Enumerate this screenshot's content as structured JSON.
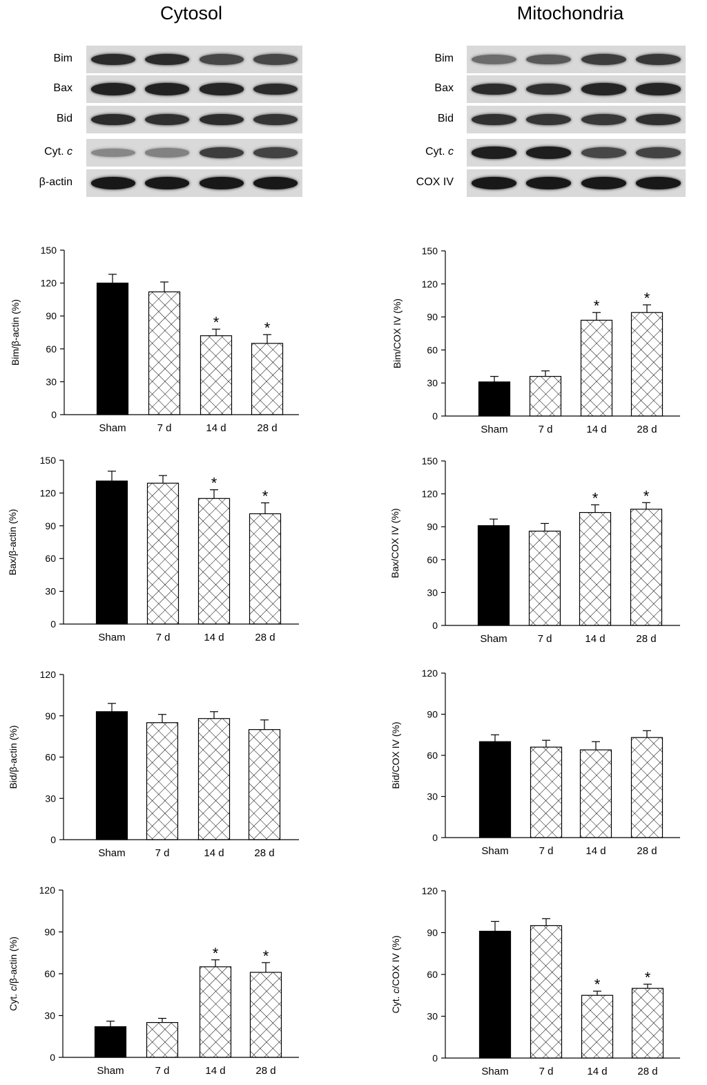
{
  "titles": {
    "cytosol": "Cytosol",
    "mitochondria": "Mitochondria"
  },
  "blots": {
    "cytosol": {
      "rows": [
        {
          "name": "Bim",
          "label_main": "Bim",
          "label_ital": "",
          "intensity": [
            0.85,
            0.85,
            0.7,
            0.7
          ]
        },
        {
          "name": "Bax",
          "label_main": "Bax",
          "label_ital": "",
          "intensity": [
            0.9,
            0.9,
            0.88,
            0.85
          ]
        },
        {
          "name": "Bid",
          "label_main": "Bid",
          "label_ital": "",
          "intensity": [
            0.85,
            0.82,
            0.84,
            0.8
          ]
        },
        {
          "name": "Cyt. c",
          "label_main": "Cyt. ",
          "label_ital": "c",
          "intensity": [
            0.35,
            0.38,
            0.75,
            0.72
          ]
        },
        {
          "name": "β-actin",
          "label_main": "β-actin",
          "label_ital": "",
          "intensity": [
            0.95,
            0.95,
            0.95,
            0.95
          ]
        }
      ]
    },
    "mitochondria": {
      "rows": [
        {
          "name": "Bim",
          "label_main": "Bim",
          "label_ital": "",
          "intensity": [
            0.5,
            0.6,
            0.75,
            0.78
          ]
        },
        {
          "name": "Bax",
          "label_main": "Bax",
          "label_ital": "",
          "intensity": [
            0.85,
            0.82,
            0.88,
            0.88
          ]
        },
        {
          "name": "Bid",
          "label_main": "Bid",
          "label_ital": "",
          "intensity": [
            0.82,
            0.8,
            0.78,
            0.82
          ]
        },
        {
          "name": "Cyt. c",
          "label_main": "Cyt. ",
          "label_ital": "c",
          "intensity": [
            0.92,
            0.92,
            0.7,
            0.72
          ]
        },
        {
          "name": "COX IV",
          "label_main": "COX IV",
          "label_ital": "",
          "intensity": [
            0.95,
            0.95,
            0.95,
            0.95
          ]
        }
      ]
    }
  },
  "chart_data": [
    {
      "id": "cyto-bim",
      "type": "bar",
      "ylabel": "Bim/β-actin (%)",
      "ylabel_ital": false,
      "categories": [
        "Sham",
        "7 d",
        "14 d",
        "28 d"
      ],
      "values": [
        120,
        112,
        72,
        65
      ],
      "errors": [
        8,
        9,
        6,
        8
      ],
      "significant": [
        false,
        false,
        true,
        true
      ],
      "ylim": [
        0,
        150
      ],
      "yticks": [
        0,
        30,
        60,
        90,
        120,
        150
      ]
    },
    {
      "id": "mito-bim",
      "type": "bar",
      "ylabel": "Bim/COX IV (%)",
      "ylabel_ital": false,
      "categories": [
        "Sham",
        "7 d",
        "14 d",
        "28 d"
      ],
      "values": [
        31,
        36,
        87,
        94
      ],
      "errors": [
        5,
        5,
        7,
        7
      ],
      "significant": [
        false,
        false,
        true,
        true
      ],
      "ylim": [
        0,
        150
      ],
      "yticks": [
        0,
        30,
        60,
        90,
        120,
        150
      ]
    },
    {
      "id": "cyto-bax",
      "type": "bar",
      "ylabel": "Bax/β-actin (%)",
      "ylabel_ital": false,
      "categories": [
        "Sham",
        "7 d",
        "14 d",
        "28 d"
      ],
      "values": [
        131,
        129,
        115,
        101
      ],
      "errors": [
        9,
        7,
        8,
        10
      ],
      "significant": [
        false,
        false,
        true,
        true
      ],
      "ylim": [
        0,
        150
      ],
      "yticks": [
        0,
        30,
        60,
        90,
        120,
        150
      ]
    },
    {
      "id": "mito-bax",
      "type": "bar",
      "ylabel": "Bax/COX IV (%)",
      "ylabel_ital": false,
      "categories": [
        "Sham",
        "7 d",
        "14 d",
        "28 d"
      ],
      "values": [
        91,
        86,
        103,
        106
      ],
      "errors": [
        6,
        7,
        7,
        6
      ],
      "significant": [
        false,
        false,
        true,
        true
      ],
      "ylim": [
        0,
        150
      ],
      "yticks": [
        0,
        30,
        60,
        90,
        120,
        150
      ]
    },
    {
      "id": "cyto-bid",
      "type": "bar",
      "ylabel": "Bid/β-actin (%)",
      "ylabel_ital": false,
      "categories": [
        "Sham",
        "7 d",
        "14 d",
        "28 d"
      ],
      "values": [
        93,
        85,
        88,
        80
      ],
      "errors": [
        6,
        6,
        5,
        7
      ],
      "significant": [
        false,
        false,
        false,
        false
      ],
      "ylim": [
        0,
        120
      ],
      "yticks": [
        0,
        30,
        60,
        90,
        120
      ]
    },
    {
      "id": "mito-bid",
      "type": "bar",
      "ylabel": "Bid/COX IV (%)",
      "ylabel_ital": false,
      "categories": [
        "Sham",
        "7 d",
        "14 d",
        "28 d"
      ],
      "values": [
        70,
        66,
        64,
        73
      ],
      "errors": [
        5,
        5,
        6,
        5
      ],
      "significant": [
        false,
        false,
        false,
        false
      ],
      "ylim": [
        0,
        120
      ],
      "yticks": [
        0,
        30,
        60,
        90,
        120
      ]
    },
    {
      "id": "cyto-cytc",
      "type": "bar",
      "ylabel": "Cyt. c/β-actin (%)",
      "ylabel_ital": true,
      "categories": [
        "Sham",
        "7 d",
        "14 d",
        "28 d"
      ],
      "values": [
        22,
        25,
        65,
        61
      ],
      "errors": [
        4,
        3,
        5,
        7
      ],
      "significant": [
        false,
        false,
        true,
        true
      ],
      "ylim": [
        0,
        120
      ],
      "yticks": [
        0,
        30,
        60,
        90,
        120
      ]
    },
    {
      "id": "mito-cytc",
      "type": "bar",
      "ylabel": "Cyt. c/COX IV (%)",
      "ylabel_ital": true,
      "categories": [
        "Sham",
        "7 d",
        "14 d",
        "28 d"
      ],
      "values": [
        91,
        95,
        45,
        50
      ],
      "errors": [
        7,
        5,
        3,
        3
      ],
      "significant": [
        false,
        false,
        true,
        true
      ],
      "ylim": [
        0,
        120
      ],
      "yticks": [
        0,
        30,
        60,
        90,
        120
      ]
    }
  ],
  "significance_symbol": "*"
}
